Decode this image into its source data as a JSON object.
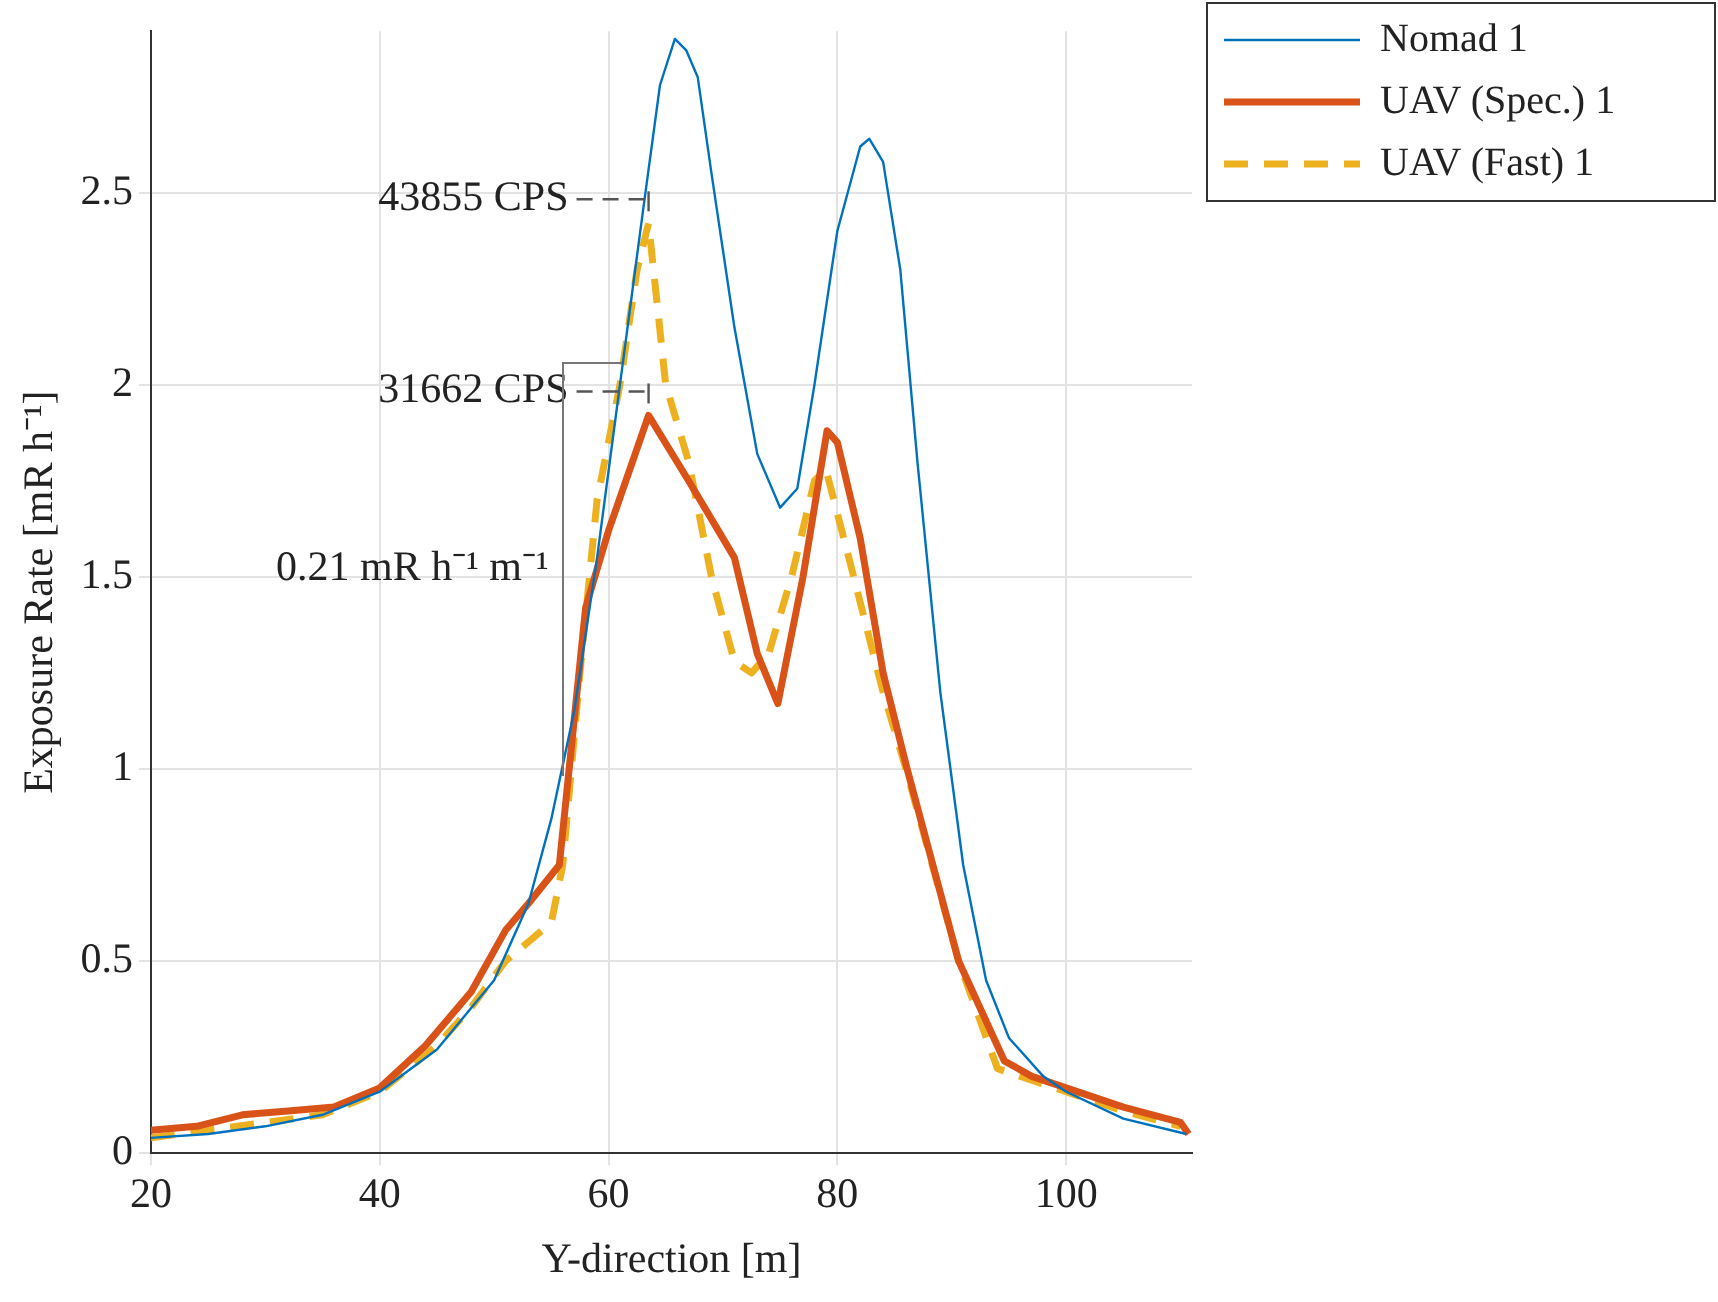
{
  "chart_data": {
    "type": "line",
    "xlabel": "Y-direction [m]",
    "ylabel": "Exposure Rate [mR h⁻¹]",
    "xlim": [
      20,
      111
    ],
    "xticks": [
      20,
      40,
      60,
      80,
      100
    ],
    "ylim": [
      0,
      2.92
    ],
    "yticks": [
      0,
      0.5,
      1,
      1.5,
      2,
      2.5
    ],
    "grid": true,
    "legend": "top right",
    "marker": "none",
    "annotations": [
      {
        "text": "43855 CPS",
        "x": 63.5,
        "y": 2.42
      },
      {
        "text": "31662 CPS",
        "x": 63.5,
        "y": 1.92
      },
      "0.21 mR h⁻¹ m⁻¹"
    ],
    "series": [
      {
        "name": "Nomad 1",
        "color": "#0072bd",
        "line_style": "solid",
        "x": [
          20,
          25,
          30,
          35,
          40,
          45,
          50,
          53,
          55,
          57,
          59,
          61,
          63,
          64.5,
          65.8,
          66.8,
          67.8,
          69,
          71,
          73,
          75,
          76.5,
          78,
          80,
          82,
          82.8,
          84,
          85.5,
          87,
          89,
          91,
          93,
          95,
          98,
          100,
          105,
          110.5
        ],
        "values": [
          0.04,
          0.05,
          0.07,
          0.1,
          0.16,
          0.27,
          0.45,
          0.65,
          0.87,
          1.15,
          1.55,
          2.0,
          2.45,
          2.78,
          2.9,
          2.87,
          2.8,
          2.55,
          2.15,
          1.82,
          1.68,
          1.73,
          2.0,
          2.4,
          2.62,
          2.64,
          2.58,
          2.3,
          1.8,
          1.2,
          0.75,
          0.45,
          0.3,
          0.2,
          0.16,
          0.09,
          0.05
        ]
      },
      {
        "name": "UAV (Spec.) 1",
        "color": "#d95319",
        "line_style": "solid",
        "x": [
          20,
          24,
          28,
          32,
          36,
          40,
          44,
          48,
          51,
          53,
          55.7,
          58,
          60,
          63.5,
          67,
          70,
          71,
          73,
          74.8,
          77,
          79.1,
          80,
          82,
          84,
          86.1,
          90.6,
          94.6,
          97,
          100,
          105,
          110,
          110.7
        ],
        "values": [
          0.06,
          0.07,
          0.1,
          0.11,
          0.12,
          0.17,
          0.28,
          0.42,
          0.58,
          0.65,
          0.75,
          1.42,
          1.62,
          1.92,
          1.75,
          1.6,
          1.55,
          1.3,
          1.17,
          1.5,
          1.88,
          1.85,
          1.6,
          1.25,
          1.0,
          0.5,
          0.24,
          0.2,
          0.17,
          0.12,
          0.08,
          0.05
        ]
      },
      {
        "name": "UAV (Fast) 1",
        "color": "#edb120",
        "line_style": "dashed",
        "x": [
          20,
          25,
          30,
          35,
          40,
          45,
          48,
          51,
          53,
          55,
          56,
          57.5,
          59,
          61,
          62.5,
          63.5,
          65,
          67,
          69,
          71,
          72.5,
          74,
          76,
          78,
          79,
          81,
          84,
          86,
          90.6,
          94,
          100,
          105,
          110
        ],
        "values": [
          0.04,
          0.06,
          0.08,
          0.1,
          0.16,
          0.28,
          0.38,
          0.5,
          0.55,
          0.6,
          0.75,
          1.25,
          1.7,
          2.0,
          2.3,
          2.42,
          2.0,
          1.8,
          1.5,
          1.28,
          1.25,
          1.3,
          1.5,
          1.75,
          1.78,
          1.55,
          1.2,
          1.0,
          0.5,
          0.22,
          0.16,
          0.11,
          0.07
        ]
      }
    ]
  }
}
